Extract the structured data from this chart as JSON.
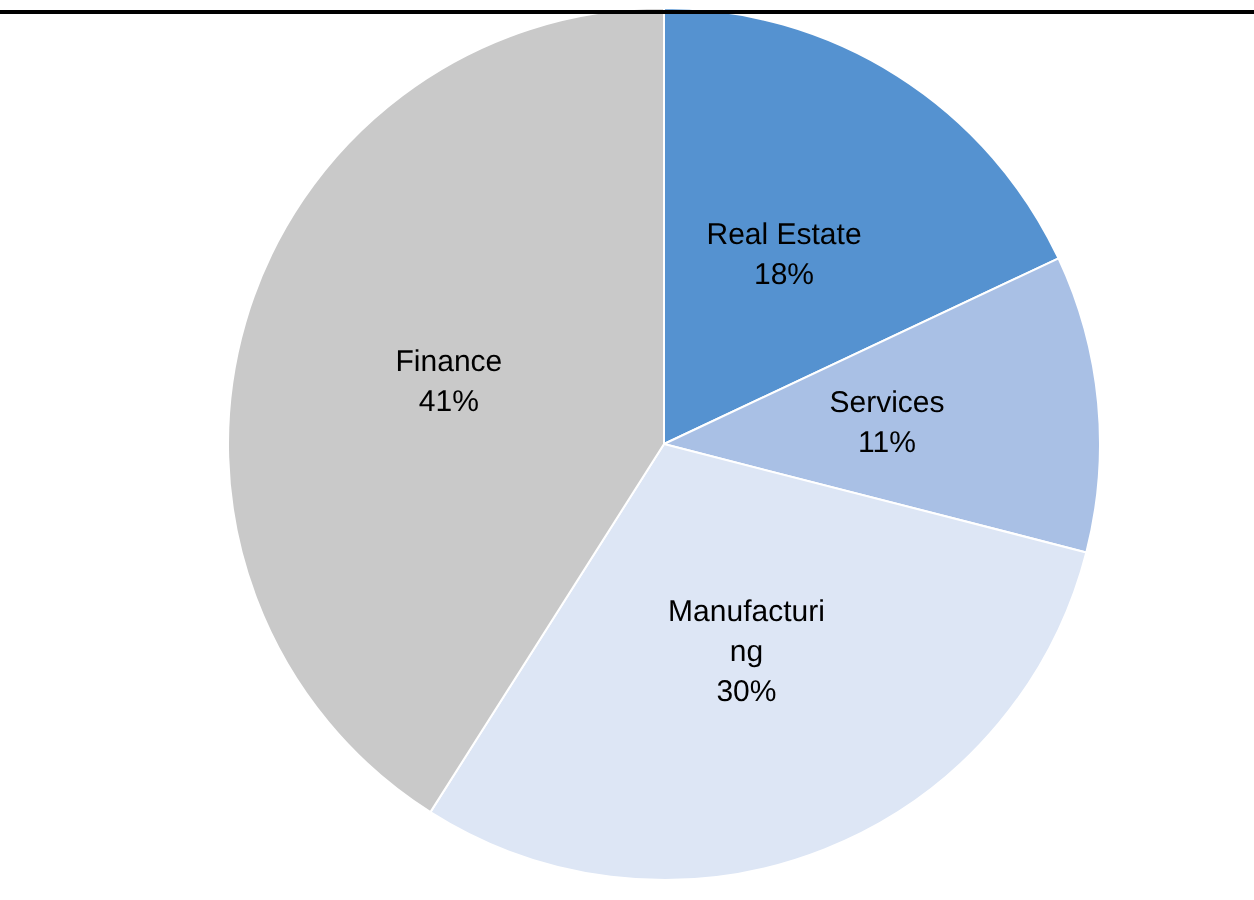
{
  "chart_data": {
    "type": "pie",
    "categories": [
      "Real Estate",
      "Services",
      "Manufacturing",
      "Finance"
    ],
    "values": [
      18,
      11,
      30,
      41
    ],
    "colors": [
      "#5592d0",
      "#a9c0e5",
      "#dde6f5",
      "#c9c9c9"
    ],
    "value_labels": [
      "18%",
      "11%",
      "30%",
      "41%"
    ],
    "legend": false
  }
}
